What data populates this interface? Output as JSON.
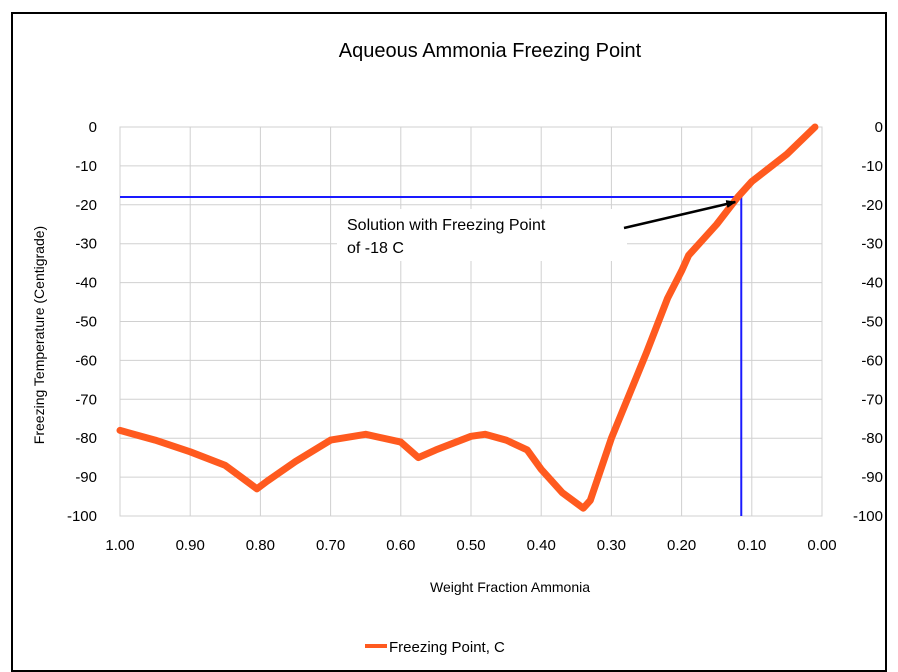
{
  "chart_data": {
    "type": "line",
    "title": "Aqueous Ammonia Freezing Point",
    "xlabel": "Weight Fraction Ammonia",
    "ylabel": "Freezing Temperature (Centigrade)",
    "xlim": [
      1.0,
      0.0
    ],
    "ylim": [
      -100,
      0
    ],
    "x_reversed": true,
    "grid": true,
    "x_ticks": [
      "1.00",
      "0.90",
      "0.80",
      "0.70",
      "0.60",
      "0.50",
      "0.40",
      "0.30",
      "0.20",
      "0.10",
      "0.00"
    ],
    "x_tick_values": [
      1.0,
      0.9,
      0.8,
      0.7,
      0.6,
      0.5,
      0.4,
      0.3,
      0.2,
      0.1,
      0.0
    ],
    "y_ticks": [
      "0",
      "-10",
      "-20",
      "-30",
      "-40",
      "-50",
      "-60",
      "-70",
      "-80",
      "-90",
      "-100"
    ],
    "y_tick_values": [
      0,
      -10,
      -20,
      -30,
      -40,
      -50,
      -60,
      -70,
      -80,
      -90,
      -100
    ],
    "series": [
      {
        "name": "Freezing Point, C",
        "color": "#ff5a1f",
        "x": [
          1.0,
          0.95,
          0.9,
          0.85,
          0.82,
          0.805,
          0.79,
          0.75,
          0.7,
          0.65,
          0.6,
          0.575,
          0.55,
          0.5,
          0.48,
          0.45,
          0.42,
          0.4,
          0.37,
          0.34,
          0.33,
          0.3,
          0.25,
          0.22,
          0.2,
          0.19,
          0.17,
          0.15,
          0.12,
          0.1,
          0.05,
          0.01
        ],
        "y": [
          -78,
          -80.5,
          -83.5,
          -87,
          -91,
          -93,
          -91,
          -86,
          -80.5,
          -79,
          -81,
          -85,
          -83,
          -79.5,
          -79,
          -80.5,
          -83,
          -88,
          -94,
          -98,
          -96,
          -80,
          -58,
          -44,
          -37,
          -33,
          -29,
          -25,
          -18,
          -14,
          -7,
          0
        ]
      }
    ],
    "reference_lines": [
      {
        "orientation": "horizontal",
        "value": -18,
        "color": "#1a1aff"
      },
      {
        "orientation": "vertical",
        "value": 0.115,
        "color": "#1a1aff"
      }
    ],
    "annotation": {
      "line1": "Solution with Freezing Point",
      "line2": "of -18 C",
      "arrow_to": {
        "x": 0.115,
        "y": -18
      }
    },
    "legend": {
      "position": "bottom"
    }
  }
}
